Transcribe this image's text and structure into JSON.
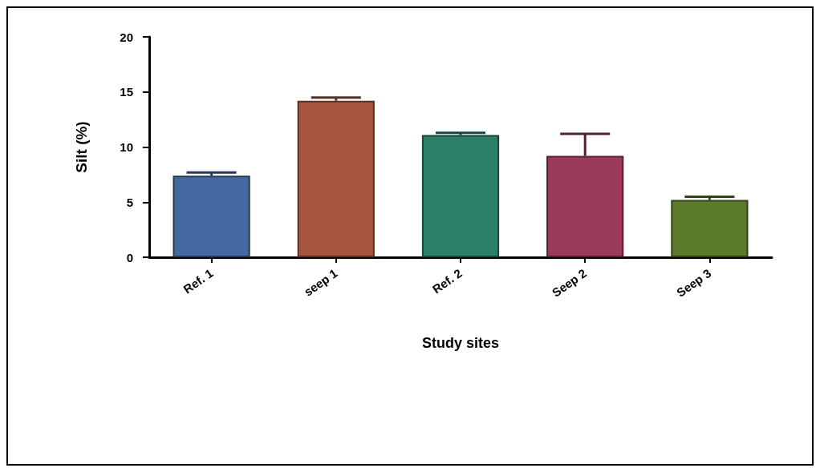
{
  "chart_data": {
    "type": "bar",
    "xlabel": "Study sites",
    "ylabel": "Silt (%)",
    "categories": [
      "Ref. 1",
      "seep 1",
      "Ref. 2",
      "Seep 2",
      "Seep 3"
    ],
    "values": [
      7.4,
      14.2,
      11.1,
      9.2,
      5.2
    ],
    "errors": [
      [
        7.4,
        7.7
      ],
      [
        14.2,
        14.5
      ],
      [
        11.1,
        11.3
      ],
      [
        9.2,
        11.2
      ],
      [
        5.2,
        5.5
      ]
    ],
    "colors": [
      "#4468a0",
      "#a5553c",
      "#2c7f68",
      "#9b3a5a",
      "#5b7a2b"
    ],
    "ylim": [
      0,
      20
    ],
    "yticks": [
      0,
      5,
      10,
      15,
      20
    ],
    "grid": false
  }
}
